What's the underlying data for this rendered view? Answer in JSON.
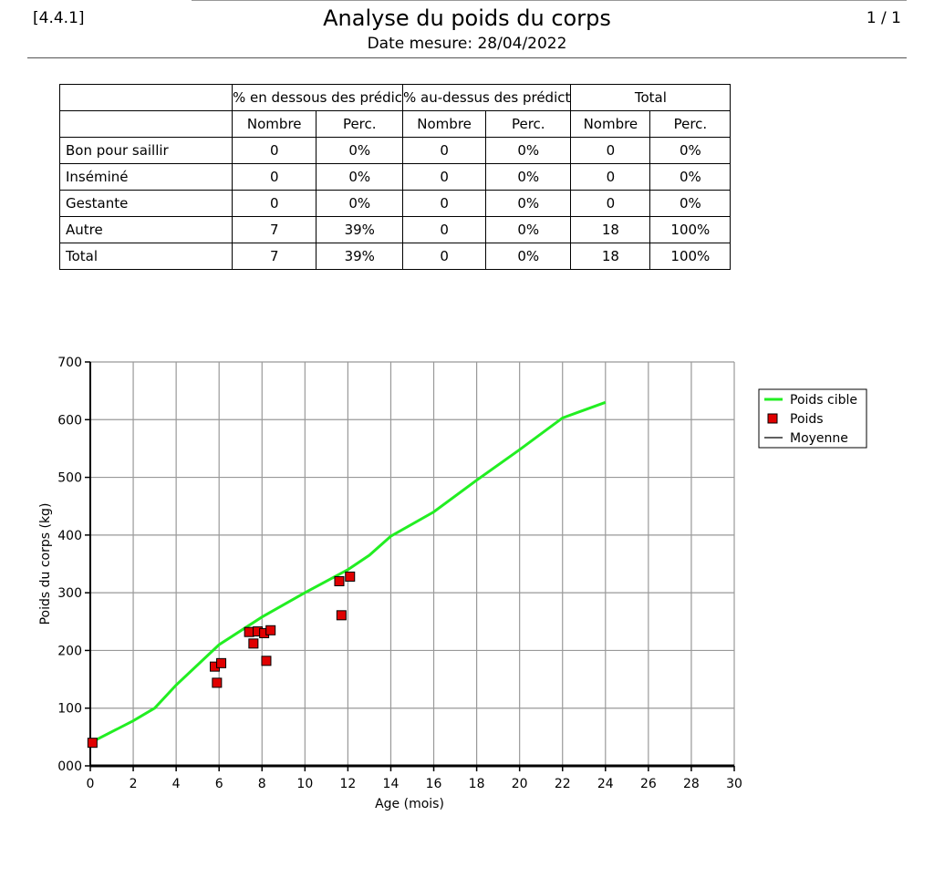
{
  "header": {
    "report_id": "[4.4.1]",
    "title": "Analyse du poids du corps",
    "subtitle": "Date mesure: 28/04/2022",
    "page": "1 / 1"
  },
  "table": {
    "group_headers": [
      "% en dessous des prédic",
      "% au-dessus des prédict",
      "Total"
    ],
    "sub_headers": [
      "Nombre",
      "Perc.",
      "Nombre",
      "Perc.",
      "Nombre",
      "Perc."
    ],
    "rows": [
      {
        "label": "Bon pour saillir",
        "values": [
          "0",
          "0%",
          "0",
          "0%",
          "0",
          "0%"
        ]
      },
      {
        "label": "Inséminé",
        "values": [
          "0",
          "0%",
          "0",
          "0%",
          "0",
          "0%"
        ]
      },
      {
        "label": "Gestante",
        "values": [
          "0",
          "0%",
          "0",
          "0%",
          "0",
          "0%"
        ]
      },
      {
        "label": "Autre",
        "values": [
          "7",
          "39%",
          "0",
          "0%",
          "18",
          "100%"
        ]
      },
      {
        "label": "Total",
        "values": [
          "7",
          "39%",
          "0",
          "0%",
          "18",
          "100%"
        ]
      }
    ]
  },
  "chart_data": {
    "type": "scatter",
    "xlabel": "Age (mois)",
    "ylabel": "Poids du corps (kg)",
    "xlim": [
      0,
      30
    ],
    "ylim": [
      0,
      700
    ],
    "xticks": [
      "0",
      "2",
      "4",
      "6",
      "8",
      "10",
      "12",
      "14",
      "16",
      "18",
      "20",
      "22",
      "24",
      "26",
      "28",
      "30"
    ],
    "yticks": [
      "000",
      "100",
      "200",
      "300",
      "400",
      "500",
      "600",
      "700"
    ],
    "grid": true,
    "legend_position": "top-right",
    "series": [
      {
        "name": "Poids cible",
        "kind": "line",
        "color": "#22ee22",
        "points": [
          [
            0,
            40
          ],
          [
            2,
            78
          ],
          [
            3,
            100
          ],
          [
            4,
            140
          ],
          [
            6,
            210
          ],
          [
            8,
            258
          ],
          [
            10,
            300
          ],
          [
            12,
            340
          ],
          [
            13,
            365
          ],
          [
            14,
            398
          ],
          [
            16,
            440
          ],
          [
            18,
            495
          ],
          [
            20,
            548
          ],
          [
            22,
            603
          ],
          [
            24,
            630
          ]
        ]
      },
      {
        "name": "Poids",
        "kind": "scatter",
        "color": "#e00000",
        "points": [
          [
            0.1,
            40
          ],
          [
            5.8,
            172
          ],
          [
            5.9,
            144
          ],
          [
            6.1,
            178
          ],
          [
            7.4,
            232
          ],
          [
            7.6,
            212
          ],
          [
            7.8,
            233
          ],
          [
            8.1,
            230
          ],
          [
            8.2,
            182
          ],
          [
            8.4,
            235
          ],
          [
            11.6,
            320
          ],
          [
            11.7,
            261
          ],
          [
            12.1,
            328
          ]
        ]
      },
      {
        "name": "Moyenne",
        "kind": "line",
        "color": "#000000",
        "points": []
      }
    ]
  }
}
